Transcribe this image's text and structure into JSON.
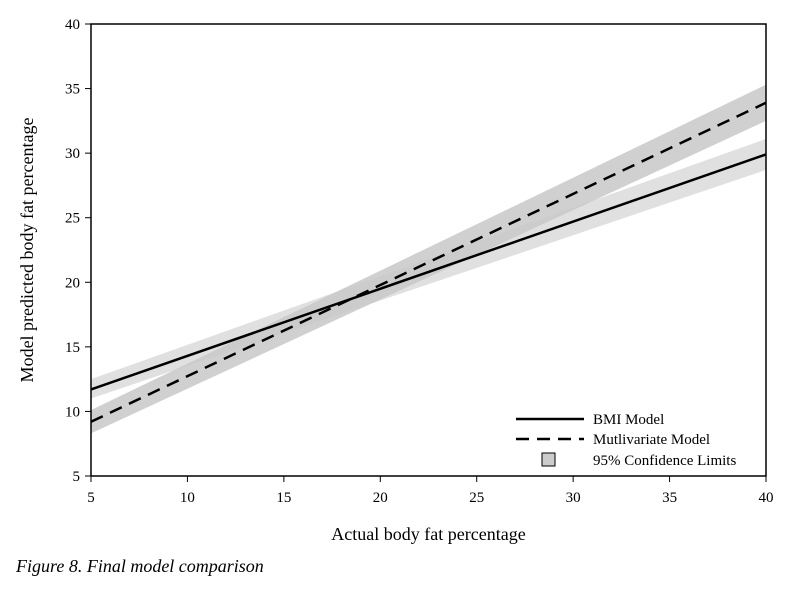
{
  "chart_data": {
    "type": "line",
    "xlabel": "Actual body fat percentage",
    "ylabel": "Model predicted body fat percentage",
    "xlim": [
      5,
      40
    ],
    "ylim": [
      5,
      40
    ],
    "x_ticks": [
      5,
      10,
      15,
      20,
      25,
      30,
      35,
      40
    ],
    "y_ticks": [
      5,
      10,
      15,
      20,
      25,
      30,
      35,
      40
    ],
    "grid": false,
    "legend_position": "bottom-right",
    "series": [
      {
        "name": "BMI Model",
        "style": "solid",
        "color": "#000000",
        "x": [
          5,
          40
        ],
        "y": [
          11.7,
          29.9
        ],
        "ci_lower": [
          11.0,
          28.7
        ],
        "ci_upper": [
          12.5,
          31.1
        ]
      },
      {
        "name": "Mutlivariate Model",
        "style": "dashed",
        "color": "#000000",
        "x": [
          5,
          40
        ],
        "y": [
          9.2,
          33.9
        ],
        "ci_lower": [
          8.3,
          32.5
        ],
        "ci_upper": [
          10.1,
          35.3
        ]
      }
    ],
    "confidence_legend": "95% Confidence Limits",
    "band_colors": [
      "#e0e0e0",
      "#c8c8c8"
    ]
  },
  "caption": "Figure 8. Final model comparison"
}
